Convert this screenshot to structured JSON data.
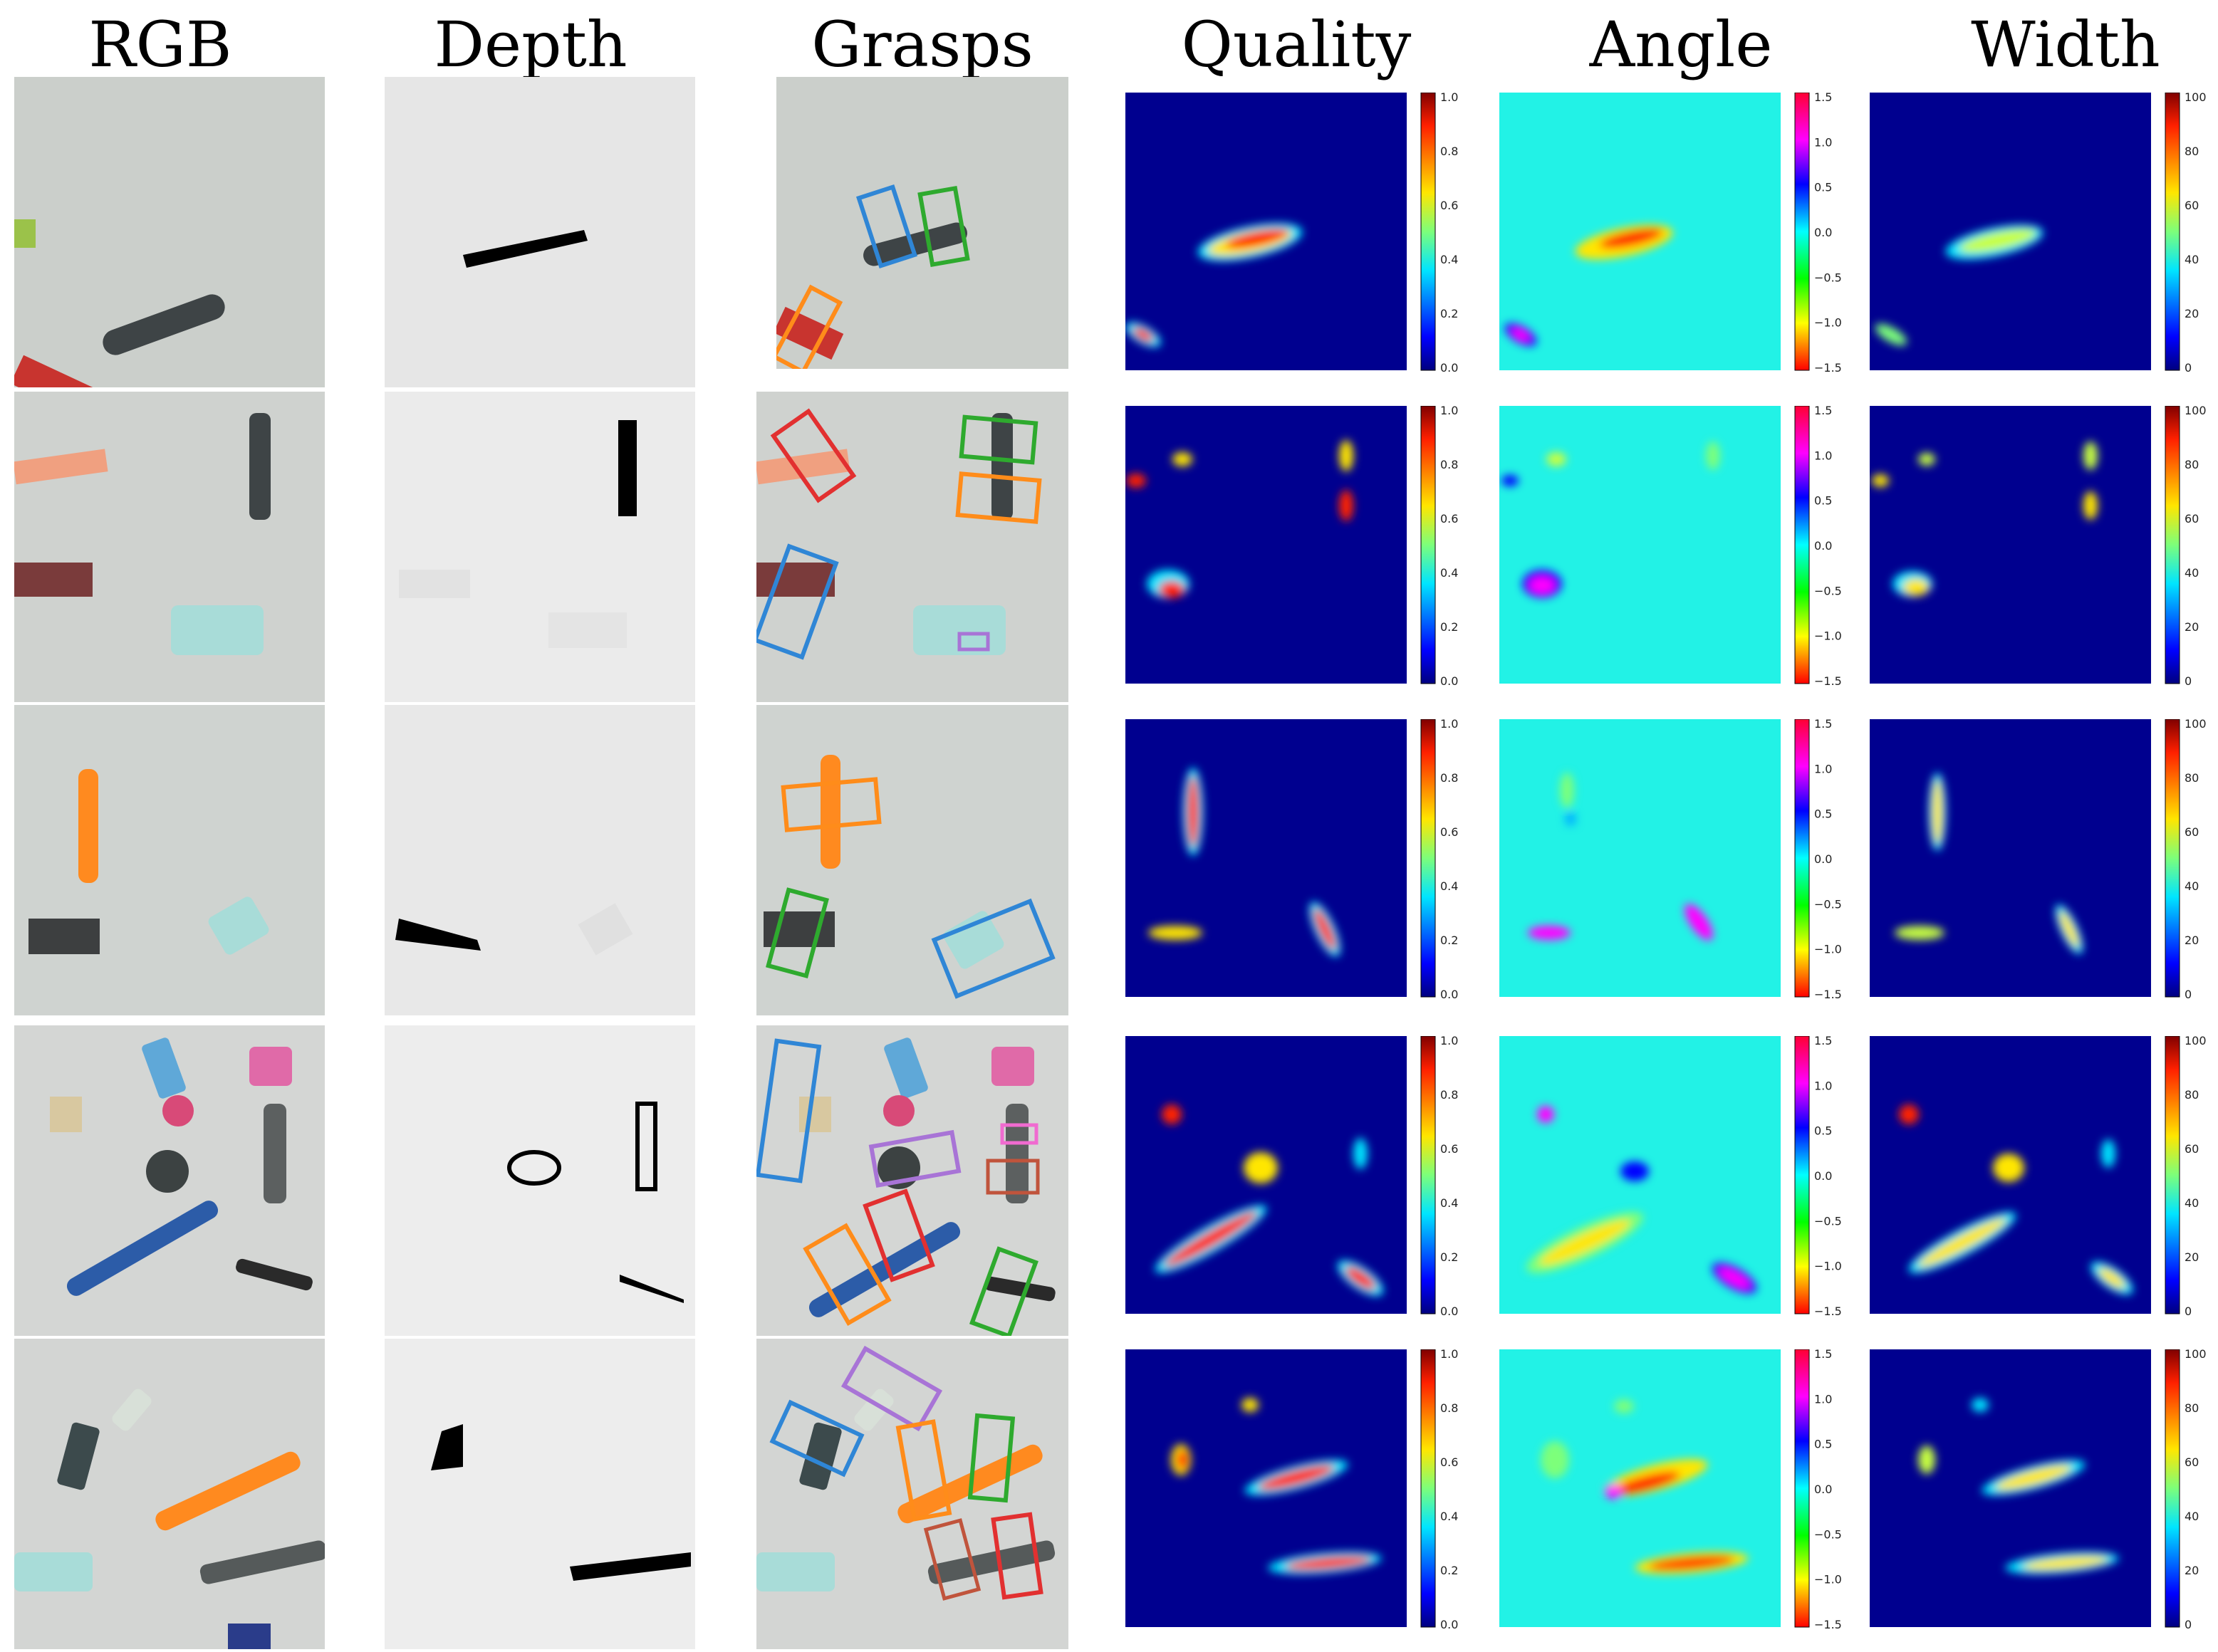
{
  "column_titles": [
    "RGB",
    "Depth",
    "Grasps",
    "Quality",
    "Angle",
    "Width"
  ],
  "colorbars": {
    "quality": [
      "1.0",
      "0.8",
      "0.6",
      "0.4",
      "0.2",
      "0.0"
    ],
    "angle": [
      "1.5",
      "1.0",
      "0.5",
      "0.0",
      "−0.5",
      "−1.0",
      "−1.5"
    ],
    "width": [
      "100",
      "80",
      "60",
      "40",
      "20",
      "0"
    ]
  },
  "colors": {
    "map_background": "#00008f",
    "angle_background": "#22f2e6",
    "table_surface": "#cbcfcb",
    "depth_background": "#e6e6e6",
    "grasp_blue": "#2f86d6",
    "grasp_green": "#2eaa2e",
    "grasp_orange": "#ff8c1a",
    "grasp_red": "#e23030",
    "grasp_purple": "#a874d6",
    "grasp_brown": "#c0543c",
    "grasp_pink": "#f06bd0"
  }
}
